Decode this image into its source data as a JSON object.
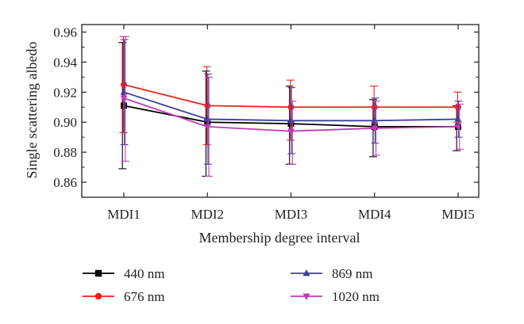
{
  "chart_data": {
    "type": "line",
    "title": "",
    "xlabel": "Membership degree interval",
    "ylabel": "Single scattering albedo",
    "categories": [
      "MDI1",
      "MDI2",
      "MDI3",
      "MDI4",
      "MDI5"
    ],
    "ylim": [
      0.85,
      0.965
    ],
    "yticks": [
      "0.86",
      "0.88",
      "0.90",
      "0.92",
      "0.94",
      "0.96"
    ],
    "grid": false,
    "legend_position": "bottom",
    "series": [
      {
        "name": "440 nm",
        "color": "#000000",
        "marker": "square",
        "values": [
          0.911,
          0.9,
          0.899,
          0.897,
          0.897
        ],
        "err_low": [
          0.042,
          0.036,
          0.027,
          0.02,
          0.016
        ],
        "err_high": [
          0.042,
          0.034,
          0.025,
          0.018,
          0.014
        ]
      },
      {
        "name": "676 nm",
        "color": "#e8231c",
        "marker": "circle",
        "values": [
          0.925,
          0.911,
          0.91,
          0.91,
          0.91
        ],
        "err_low": [
          0.032,
          0.026,
          0.022,
          0.014,
          0.01
        ],
        "err_high": [
          0.032,
          0.026,
          0.018,
          0.014,
          0.01
        ]
      },
      {
        "name": "869 nm",
        "color": "#3f3f9a",
        "marker": "triangle-up",
        "values": [
          0.92,
          0.902,
          0.901,
          0.901,
          0.902
        ],
        "err_low": [
          0.035,
          0.03,
          0.022,
          0.015,
          0.012
        ],
        "err_high": [
          0.035,
          0.03,
          0.022,
          0.015,
          0.012
        ]
      },
      {
        "name": "1020 nm",
        "color": "#c03ab6",
        "marker": "triangle-down",
        "values": [
          0.916,
          0.897,
          0.894,
          0.896,
          0.897
        ],
        "err_low": [
          0.042,
          0.033,
          0.022,
          0.018,
          0.015
        ],
        "err_high": [
          0.041,
          0.033,
          0.02,
          0.018,
          0.015
        ]
      }
    ]
  }
}
